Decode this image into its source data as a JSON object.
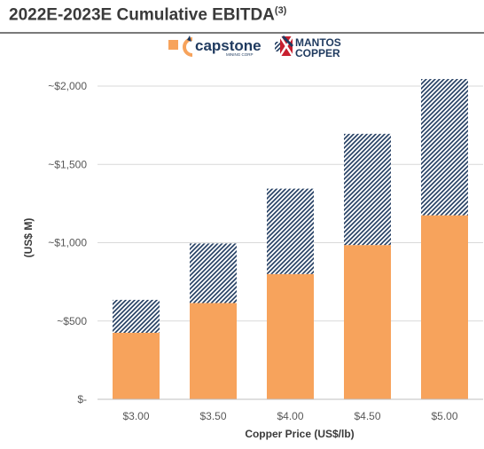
{
  "page": {
    "title": "2022E-2023E Cumulative EBITDA",
    "title_footnote": "(3)"
  },
  "legend": {
    "capstone": {
      "name": "capstone",
      "sub": "MINING CORP",
      "color": "#F7A35C"
    },
    "mantos": {
      "line1": "MANTOS",
      "line2": "COPPER",
      "color": "#1F3A5F"
    }
  },
  "colors": {
    "capstone": "#F7A35C",
    "mantos": "#1F3A5F",
    "grid": "#D9D9D9"
  },
  "chart_data": {
    "type": "bar",
    "stacked": true,
    "title": "2022E-2023E Cumulative EBITDA",
    "xlabel": "Copper Price (US$/lb)",
    "ylabel": "(US$ M)",
    "categories": [
      "$3.00",
      "$3.50",
      "$4.00",
      "$4.50",
      "$5.00"
    ],
    "series": [
      {
        "name": "capstone",
        "color": "#F7A35C",
        "pattern": "solid",
        "values": [
          425,
          615,
          800,
          985,
          1175
        ]
      },
      {
        "name": "MANTOS COPPER",
        "color": "#1F3A5F",
        "pattern": "hatched",
        "values": [
          210,
          380,
          545,
          710,
          870
        ]
      }
    ],
    "ylim": [
      0,
      2000
    ],
    "yticks": [
      0,
      500,
      1000,
      1500,
      2000
    ],
    "ytick_labels": [
      "$-",
      "~$500",
      "~$1,000",
      "~$1,500",
      "~$2,000"
    ],
    "grid": true,
    "legend_position": "top-center"
  }
}
